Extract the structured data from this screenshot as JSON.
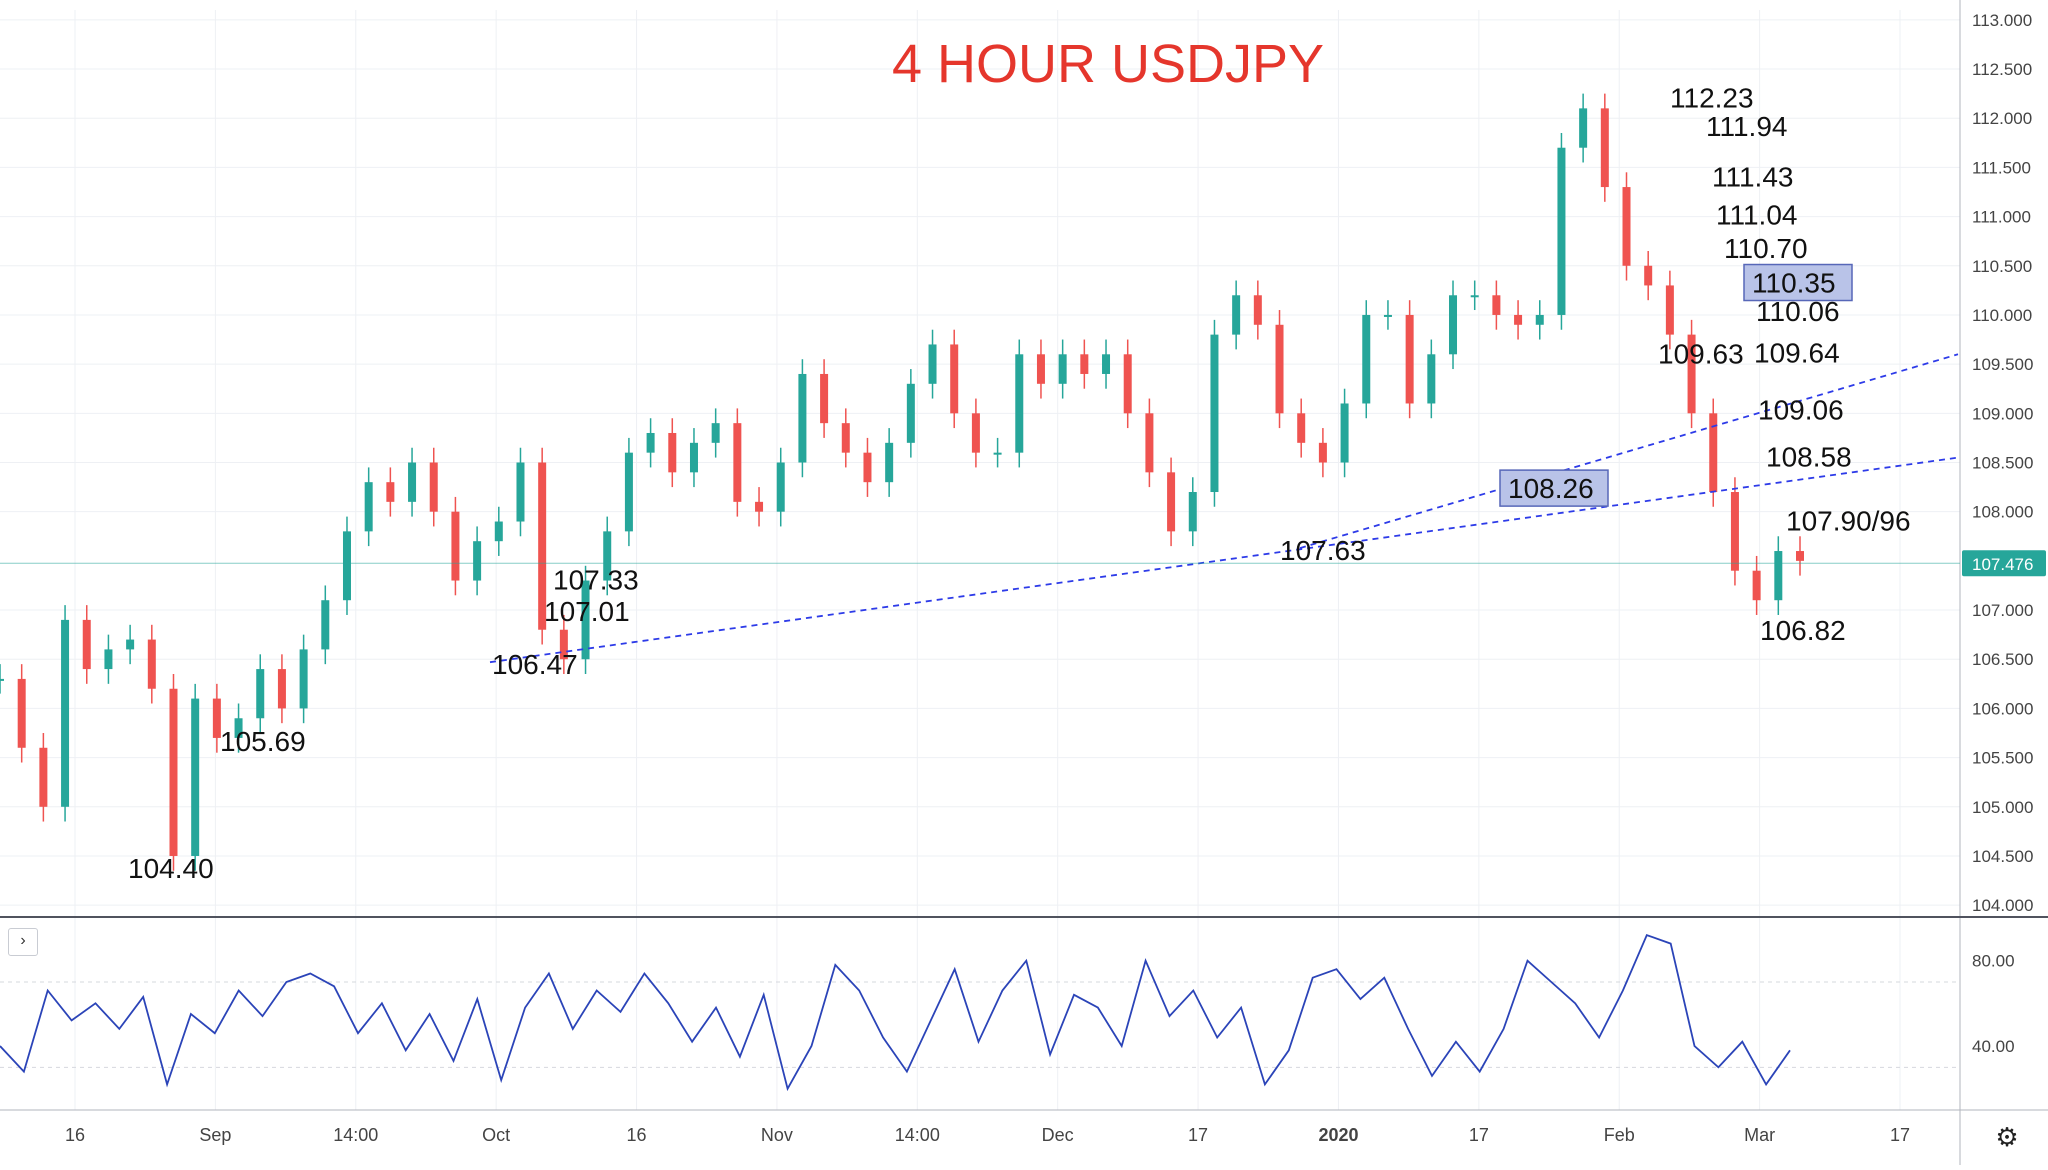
{
  "title": "4 HOUR USDJPY",
  "colors": {
    "title": "#e5362c",
    "up": "#26a69a",
    "down": "#ef5350",
    "trendline": "#2d3be8",
    "rsi_line": "#2b44b8",
    "box_fill": "#b9c3e8",
    "box_stroke": "#5767b8",
    "price_badge": "#26a69a",
    "grid": "#eef0f4",
    "axis_text": "#444444"
  },
  "icons": {
    "collapse": "chevron-right-icon",
    "settings": "gear-icon"
  },
  "collapse_glyph": "›",
  "settings_glyph": "⚙",
  "chart_data": [
    {
      "type": "line",
      "title": "4 HOUR USDJPY",
      "series": [
        {
          "values": [
            106.3,
            105.6,
            105.0,
            106.9,
            106.4,
            106.6,
            106.7,
            106.2,
            104.5,
            106.1,
            105.7,
            105.9,
            106.4,
            106.0,
            106.6,
            107.1,
            107.8,
            108.3,
            108.1,
            108.5,
            108.0,
            107.3,
            107.7,
            107.9,
            108.5,
            106.8,
            106.5,
            107.3,
            107.8,
            108.6,
            108.8,
            108.4,
            108.7,
            108.9,
            108.1,
            108.0,
            108.5,
            109.4,
            108.9,
            108.6,
            108.3,
            108.7,
            109.3,
            109.7,
            109.0,
            108.6,
            108.6,
            109.6,
            109.3,
            109.6,
            109.4,
            109.6,
            109.0,
            108.4,
            107.8,
            108.2,
            109.8,
            110.2,
            109.9,
            109.0,
            108.7,
            108.5,
            109.1,
            110.0,
            110.0,
            109.1,
            109.6,
            110.2,
            110.2,
            110.0,
            109.9,
            110.0,
            111.7,
            112.1,
            111.3,
            110.5,
            110.3,
            109.8,
            109.0,
            108.2,
            107.4,
            107.1,
            107.6,
            107.5
          ],
          "labels": [
            "16",
            "Sep",
            "14:00",
            "Oct",
            "16",
            "Nov",
            "14:00",
            "Dec",
            "17",
            "2020",
            "17",
            "Feb",
            "Mar",
            "17"
          ]
        }
      ],
      "y_ticks": [
        "113.000",
        "112.500",
        "112.000",
        "111.500",
        "111.000",
        "110.500",
        "110.000",
        "109.500",
        "109.000",
        "108.500",
        "108.000",
        "107.000",
        "106.500",
        "106.000",
        "105.500",
        "105.000",
        "104.500",
        "104.000"
      ],
      "ylim": [
        103.9,
        113.1
      ],
      "current_price": "107.476",
      "current_price_value": 107.476,
      "annotations": [
        {
          "text": "112.23",
          "value": 112.23
        },
        {
          "text": "111.94",
          "value": 111.94
        },
        {
          "text": "111.43",
          "value": 111.43
        },
        {
          "text": "111.04",
          "value": 111.04
        },
        {
          "text": "110.70",
          "value": 110.7
        },
        {
          "text": "110.35",
          "value": 110.35,
          "boxed": true
        },
        {
          "text": "110.06",
          "value": 110.06
        },
        {
          "text": "109.63",
          "value": 109.63
        },
        {
          "text": "109.64",
          "value": 109.64
        },
        {
          "text": "109.06",
          "value": 109.06
        },
        {
          "text": "108.58",
          "value": 108.58
        },
        {
          "text": "108.26",
          "value": 108.26,
          "boxed": true
        },
        {
          "text": "107.90/96",
          "value": 107.93
        },
        {
          "text": "107.63",
          "value": 107.63
        },
        {
          "text": "107.33",
          "value": 107.33
        },
        {
          "text": "107.01",
          "value": 107.01
        },
        {
          "text": "106.82",
          "value": 106.82
        },
        {
          "text": "106.47",
          "value": 106.47
        },
        {
          "text": "105.69",
          "value": 105.69
        },
        {
          "text": "104.40",
          "value": 104.4
        }
      ],
      "trendlines": [
        {
          "from": 106.47,
          "to": 108.55,
          "style": "dashed"
        },
        {
          "from": 107.63,
          "to": 109.6,
          "style": "dashed"
        }
      ],
      "grid": true
    },
    {
      "type": "line",
      "y_ticks": [
        "80.00",
        "40.00"
      ],
      "ylim": [
        10,
        100
      ],
      "reference_lines": [
        70,
        30
      ],
      "values": [
        40,
        28,
        66,
        52,
        60,
        48,
        63,
        22,
        55,
        46,
        66,
        54,
        70,
        74,
        68,
        46,
        60,
        38,
        55,
        33,
        62,
        24,
        58,
        74,
        48,
        66,
        56,
        74,
        60,
        42,
        58,
        35,
        64,
        20,
        40,
        78,
        66,
        44,
        28,
        52,
        76,
        42,
        66,
        80,
        36,
        64,
        58,
        40,
        80,
        54,
        66,
        44,
        58,
        22,
        38,
        72,
        76,
        62,
        72,
        48,
        26,
        42,
        28,
        48,
        80,
        70,
        60,
        44,
        66,
        92,
        88,
        40,
        30,
        42,
        22,
        38
      ]
    }
  ]
}
